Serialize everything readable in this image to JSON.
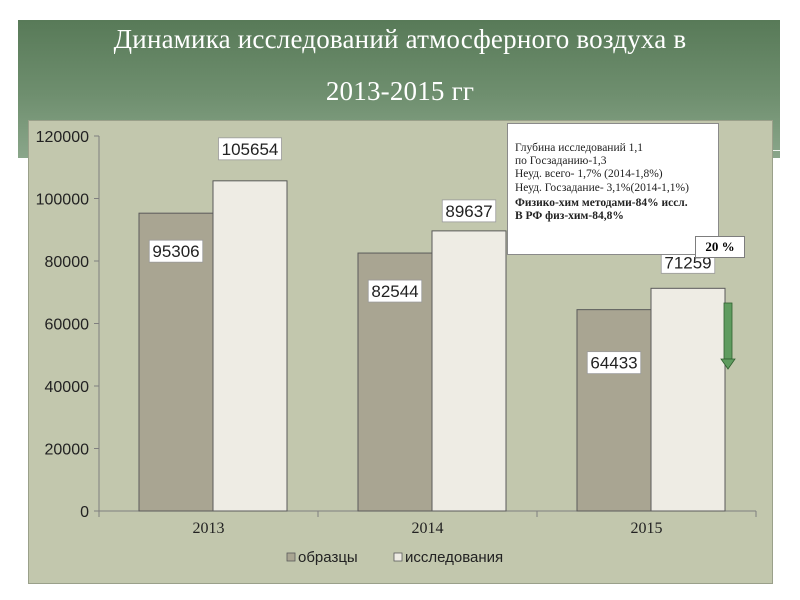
{
  "slide": {
    "title_line1": "Динамика исследований атмосферного воздуха в",
    "title_line2": "2013-2015 гг",
    "accent_color": "#6f8f6f"
  },
  "note": {
    "lines": [
      "Глубина исследований 1,1",
      "по Госзаданию-1,3",
      "Неуд. всего- 1,7% (2014-1,8%)",
      "Неуд. Госзадание- 3,1%(2014-1,1%)",
      "Физико-хим методами-84% иссл.",
      "В РФ физ-хим-84,8%"
    ]
  },
  "badge": {
    "text": "20 %"
  },
  "chart_data": {
    "type": "bar",
    "categories": [
      "2013",
      "2014",
      "2015"
    ],
    "series": [
      {
        "name": "образцы",
        "values": [
          95306,
          82544,
          64433
        ],
        "color": "#a9a592"
      },
      {
        "name": "исследования",
        "values": [
          105654,
          89637,
          71259
        ],
        "color": "#eeece4"
      }
    ],
    "ylim": [
      0,
      120000
    ],
    "yticks": [
      "0",
      "20000",
      "40000",
      "60000",
      "80000",
      "100000",
      "120000"
    ],
    "data_labels": [
      "95306",
      "82544",
      "64433",
      "105654",
      "89637",
      "71259"
    ],
    "grid": false,
    "legend": "bottom",
    "plot_background": "#c2c7ad",
    "arrow_color": "#5f9c5f"
  }
}
